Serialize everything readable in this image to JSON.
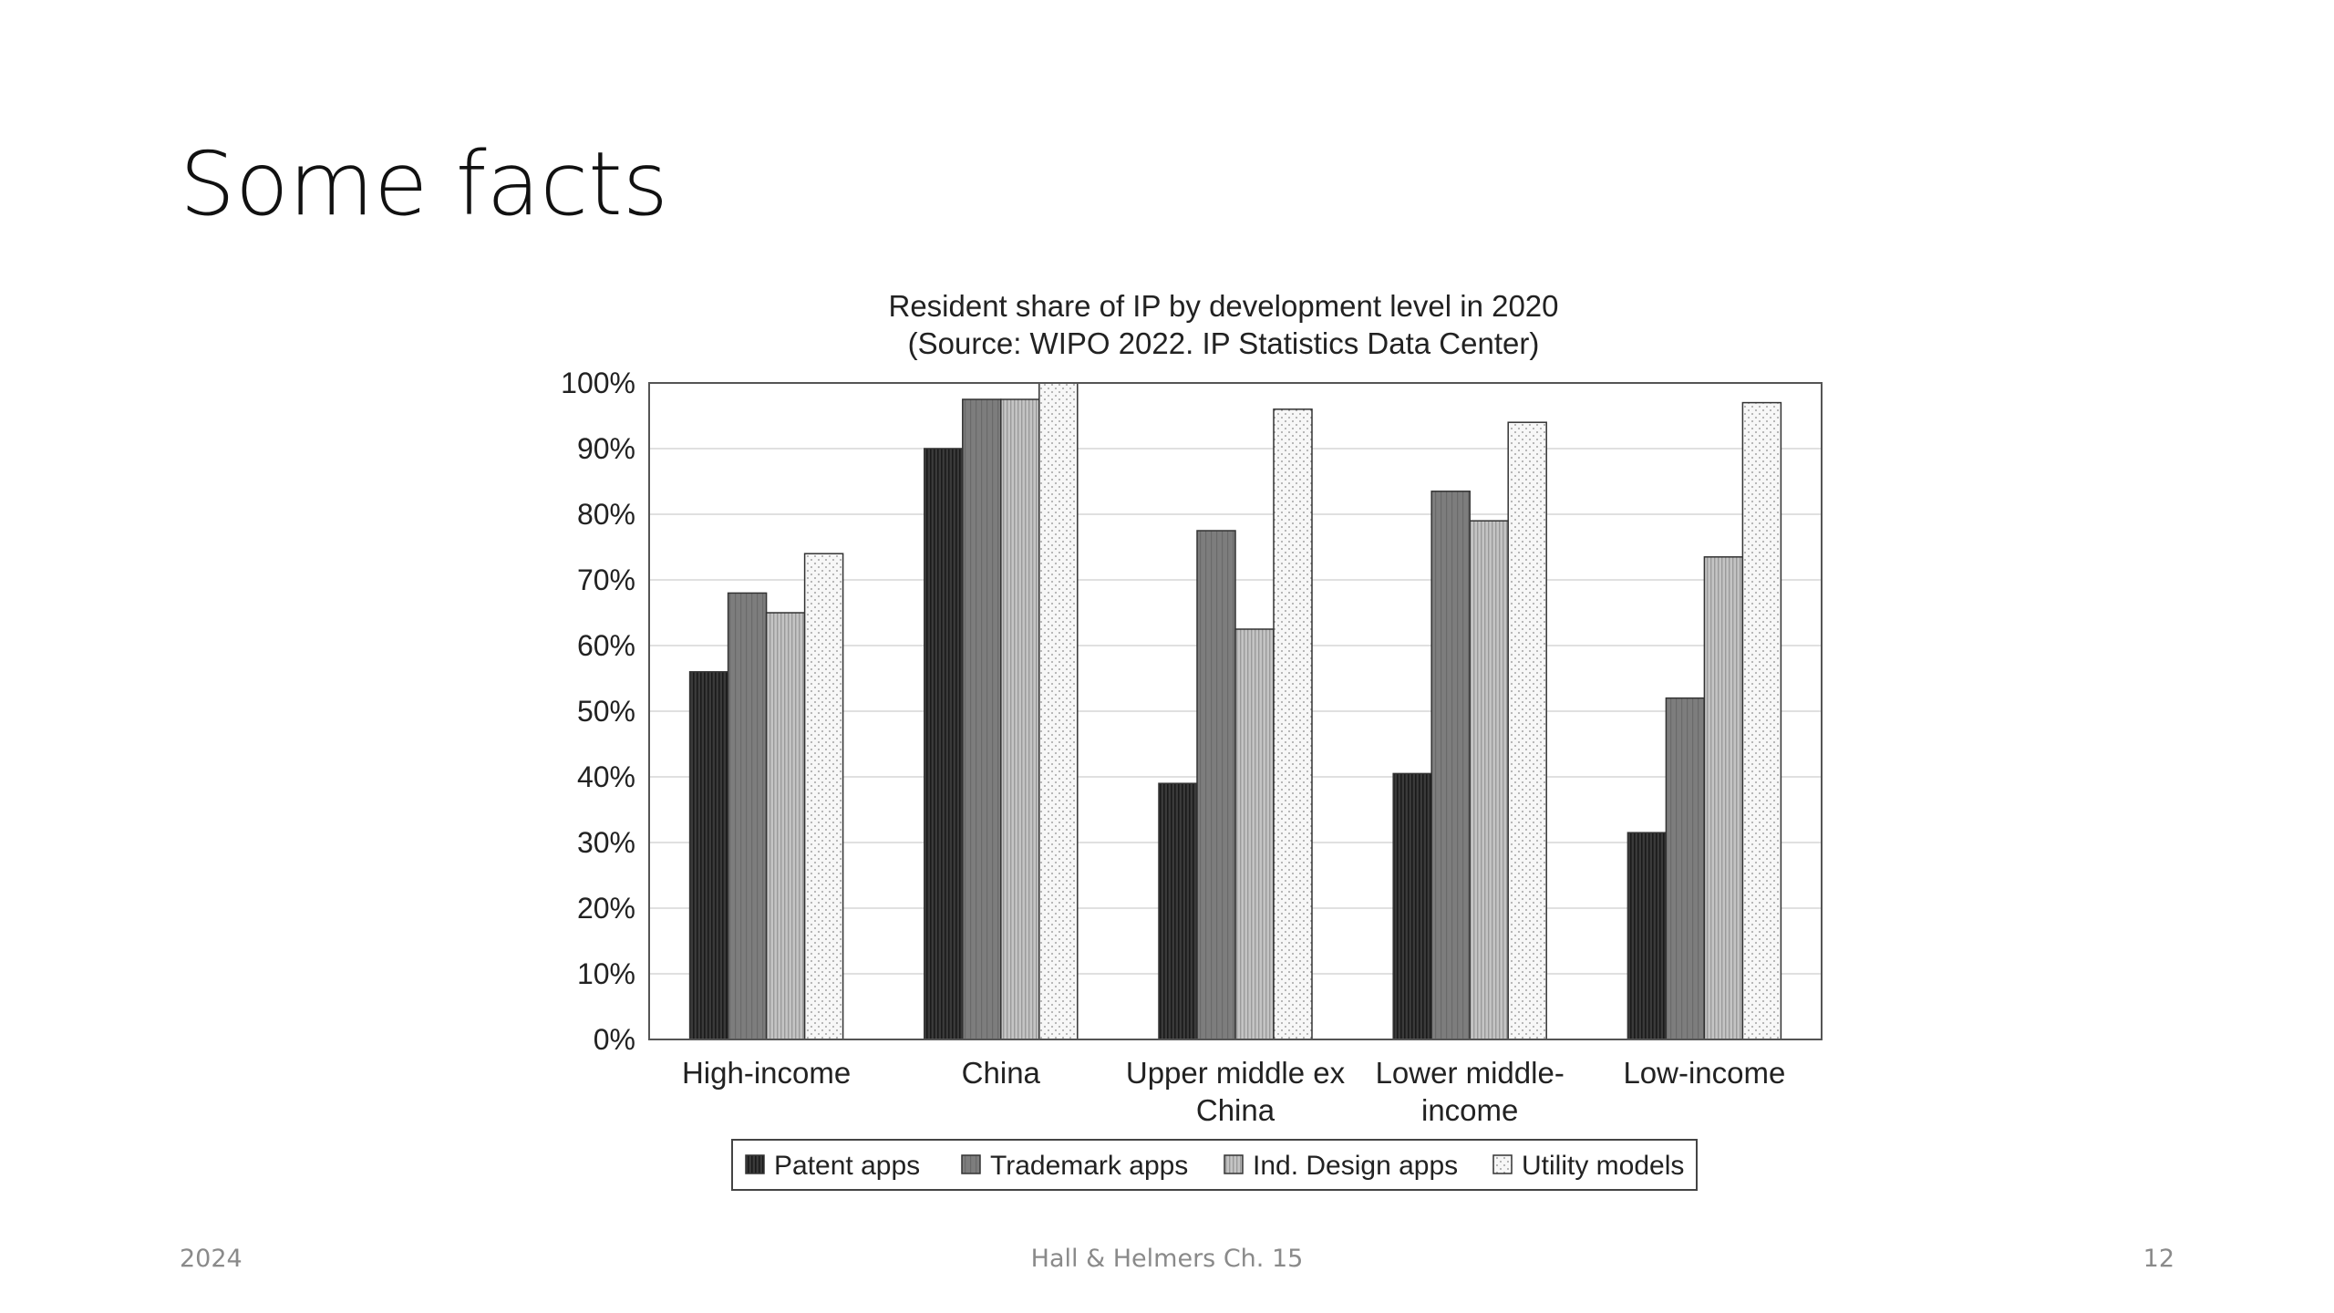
{
  "slide": {
    "title": "Some facts",
    "footer_left": "2024",
    "footer_center": "Hall & Helmers Ch. 15",
    "footer_right": "12"
  },
  "chart_data": {
    "type": "bar",
    "title": "Resident share of IP by development level in 2020",
    "subtitle": "(Source: WIPO 2022. IP Statistics Data Center)",
    "categories": [
      [
        "High-income"
      ],
      [
        "China"
      ],
      [
        "Upper middle ex",
        "China"
      ],
      [
        "Lower middle-",
        "income"
      ],
      [
        "Low-income"
      ]
    ],
    "series": [
      {
        "name": "Patent apps",
        "values": [
          56,
          90,
          39,
          40.5,
          31.5
        ],
        "color": "#3a3a3a",
        "pattern": "dark-vertical"
      },
      {
        "name": "Trademark apps",
        "values": [
          68,
          97.5,
          77.5,
          83.5,
          52
        ],
        "color": "#7d7d7d",
        "pattern": "mid-vertical"
      },
      {
        "name": "Ind. Design apps",
        "values": [
          65,
          97.5,
          62.5,
          79,
          73.5
        ],
        "color": "#bdbdbd",
        "pattern": "light-vertical"
      },
      {
        "name": "Utility models",
        "values": [
          74,
          100,
          96,
          94,
          97
        ],
        "color": "#f4f4f4",
        "pattern": "dots"
      }
    ],
    "yticks": [
      "0%",
      "10%",
      "20%",
      "30%",
      "40%",
      "50%",
      "60%",
      "70%",
      "80%",
      "90%",
      "100%"
    ],
    "ylim": [
      0,
      100
    ],
    "grid": true,
    "legend_position": "bottom"
  }
}
